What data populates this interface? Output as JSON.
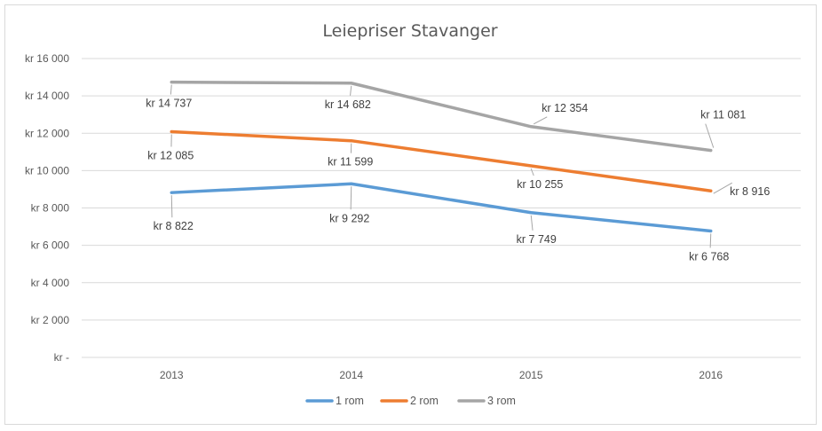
{
  "chart_data": {
    "type": "line",
    "title": "Leiepriser Stavanger",
    "xlabel": "",
    "ylabel": "",
    "categories": [
      "2013",
      "2014",
      "2015",
      "2016"
    ],
    "ylim": [
      0,
      16000
    ],
    "y_ticks": [
      0,
      2000,
      4000,
      6000,
      8000,
      10000,
      12000,
      14000,
      16000
    ],
    "y_tick_labels": [
      "kr -",
      "kr 2 000",
      "kr 4 000",
      "kr 6 000",
      "kr 8 000",
      "kr 10 000",
      "kr 12 000",
      "kr 14 000",
      "kr 16 000"
    ],
    "grid": true,
    "legend_position": "bottom",
    "series": [
      {
        "name": "1 rom",
        "color": "#5b9bd5",
        "values": [
          8822,
          9292,
          7749,
          6768
        ],
        "labels": [
          "kr 8 822",
          "kr 9 292",
          "kr 7 749",
          "kr 6 768"
        ]
      },
      {
        "name": "2 rom",
        "color": "#ed7d31",
        "values": [
          12085,
          11599,
          10255,
          8916
        ],
        "labels": [
          "kr 12 085",
          "kr 11 599",
          "kr 10 255",
          "kr 8 916"
        ]
      },
      {
        "name": "3 rom",
        "color": "#a5a5a5",
        "values": [
          14737,
          14682,
          12354,
          11081
        ],
        "labels": [
          "kr 14 737",
          "kr 14 682",
          "kr 12 354",
          "kr 11 081"
        ]
      }
    ]
  }
}
